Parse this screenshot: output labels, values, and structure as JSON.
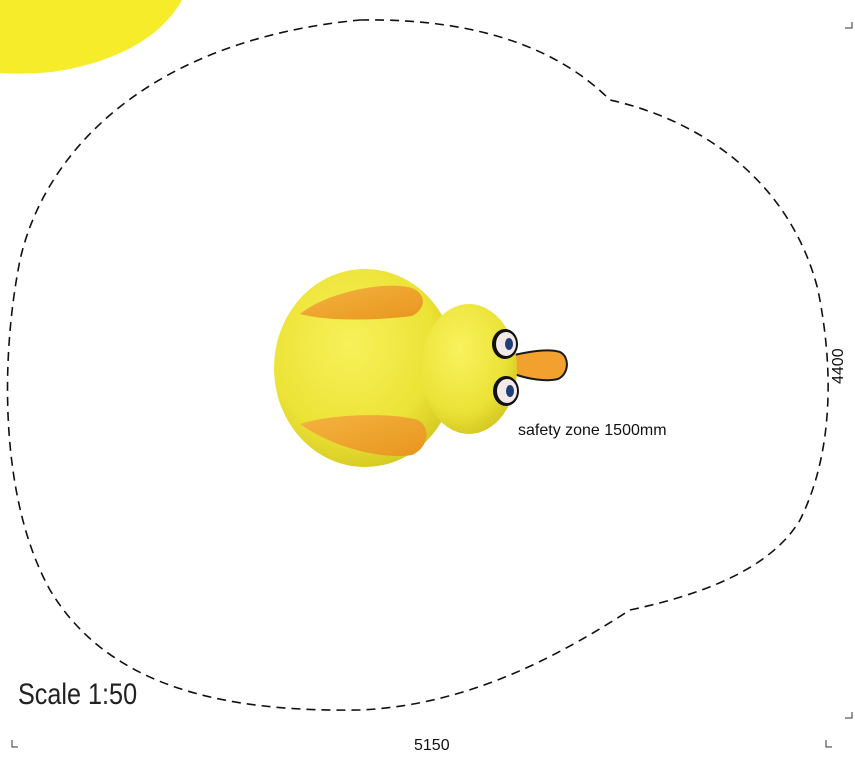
{
  "safety_zone_label": "safety zone 1500mm",
  "scale_label": "Scale 1:50",
  "dimensions": {
    "width": "5150",
    "height": "4400"
  },
  "colors": {
    "duck_body": "#f2ea3a",
    "wing": "#f0a430",
    "beak": "#f2a12e",
    "outline": "#111111",
    "corner_blob": "#f7ec2a"
  }
}
